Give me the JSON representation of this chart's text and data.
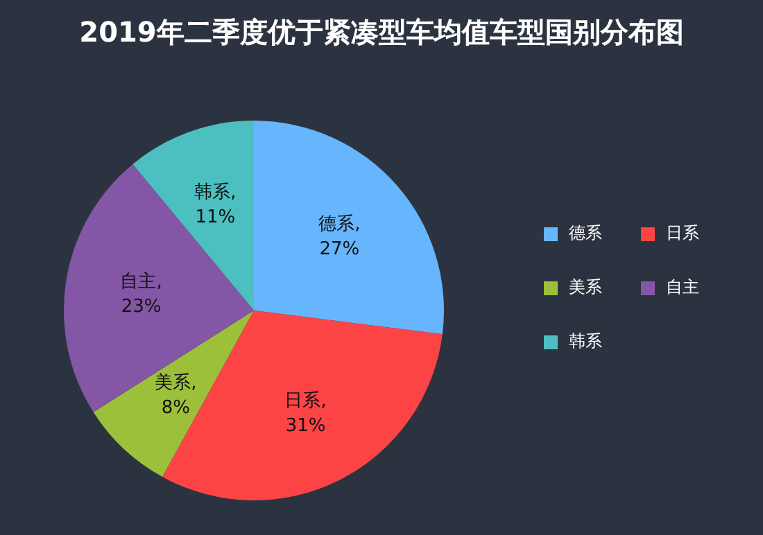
{
  "chart_data": {
    "type": "pie",
    "title": "2019年二季度优于紧凑型车均值车型国别分布图",
    "categories": [
      "德系",
      "日系",
      "美系",
      "自主",
      "韩系"
    ],
    "values": [
      27,
      31,
      8,
      23,
      11
    ],
    "value_labels": [
      "德系,\n27%",
      "日系,\n31%",
      "美系,\n8%",
      "自主,\n23%",
      "韩系,\n11%"
    ],
    "colors": [
      "#66b5fd",
      "#fd4444",
      "#9dc03b",
      "#8456a6",
      "#4cbfc1"
    ],
    "legend": "right"
  }
}
